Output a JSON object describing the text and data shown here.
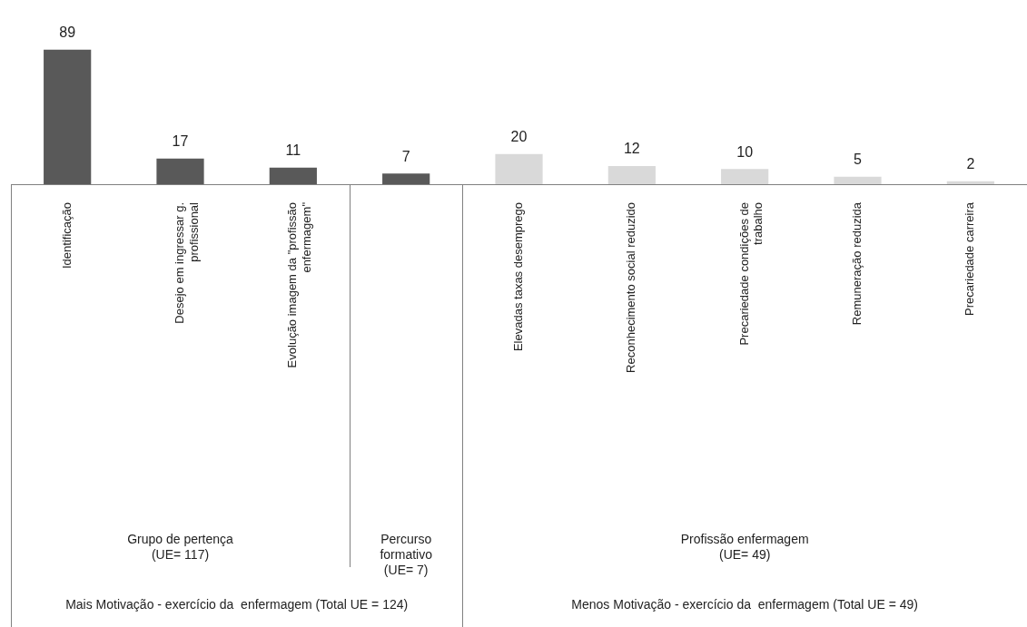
{
  "chart_data": {
    "type": "bar",
    "categories": [
      "Identificação",
      "Desejo em ingressar g. profissional",
      "Evolução imagem da \"profissão enfermagem\"",
      null,
      "Elevadas taxas desemprego",
      "Reconhecimento social reduzido",
      "Precariedade condições de trabalho",
      "Remuneração reduzida",
      "Precariedade carreira"
    ],
    "values": [
      89,
      17,
      11,
      7,
      20,
      12,
      10,
      5,
      2
    ],
    "colors": [
      "#595959",
      "#595959",
      "#595959",
      "#595959",
      "#d9d9d9",
      "#d9d9d9",
      "#d9d9d9",
      "#d9d9d9",
      "#d9d9d9"
    ],
    "data_labels": true,
    "annotations": [
      "Grupo de pertença (UE= 117)",
      "Percurso formativo (UE= 7)",
      "Profissão enfermagem (UE= 49)",
      "Mais Motivação - exercício da  enfermagem (Total UE = 124)",
      "Menos Motivação - exercício da  enfermagem (Total UE = 49)"
    ]
  }
}
